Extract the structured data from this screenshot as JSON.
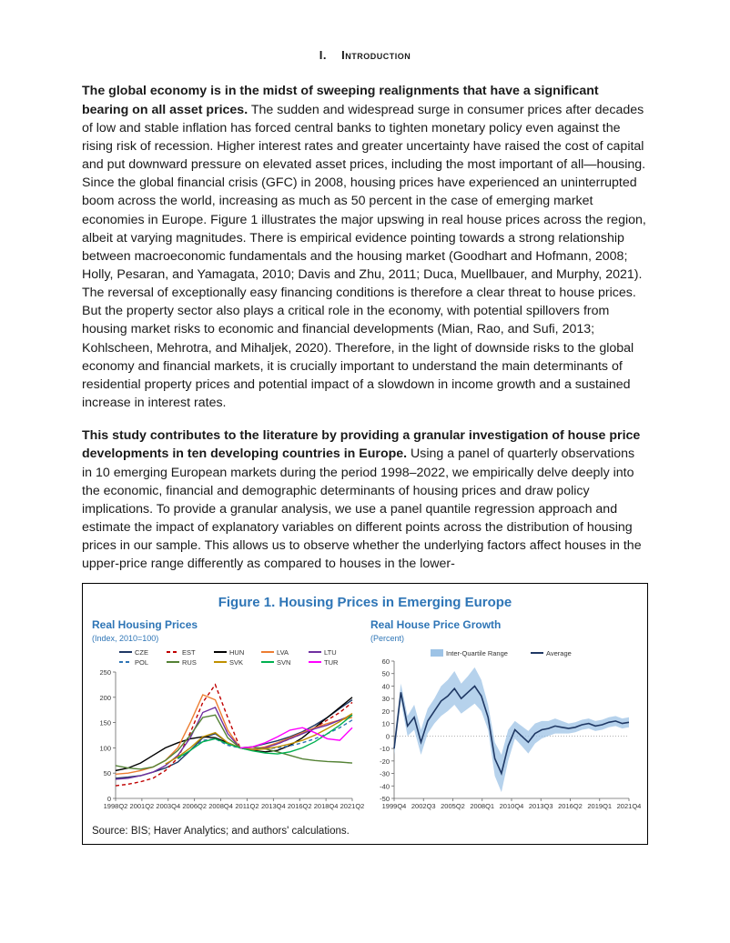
{
  "heading": {
    "number": "I.",
    "title": "Introduction"
  },
  "para1": {
    "lead": "The global economy is in the midst of sweeping realignments that have a significant bearing on all asset prices.",
    "rest": " The sudden and widespread surge in consumer prices after decades of low and stable inflation has forced central banks to tighten monetary policy even against the rising risk of recession. Higher interest rates and greater uncertainty have raised the cost of capital and put downward pressure on elevated asset prices, including the most important of all—housing. Since the global financial crisis (GFC) in 2008, housing prices have experienced an uninterrupted boom across the world, increasing as much as 50 percent in the case of emerging market economies in Europe. Figure 1 illustrates the major upswing in real house prices across the region, albeit at varying magnitudes. There is empirical evidence pointing towards a strong relationship between macroeconomic fundamentals and the housing market (Goodhart and Hofmann, 2008; Holly, Pesaran, and Yamagata, 2010; Davis and Zhu, 2011; Duca, Muellbauer, and Murphy, 2021). The reversal of exceptionally easy financing conditions is therefore a clear threat to house prices. But the property sector also plays a critical role in the economy, with potential spillovers from housing market risks to economic and financial developments (Mian, Rao, and Sufi, 2013; Kohlscheen, Mehrotra, and Mihaljek, 2020). Therefore, in the light of downside risks to the global economy and financial markets, it is crucially important to understand the main determinants of residential property prices and potential impact of a slowdown in income growth and a sustained increase in interest rates."
  },
  "para2": {
    "lead": "This study contributes to the literature by providing a granular investigation of house price developments in ten developing countries in Europe.",
    "rest": " Using a panel of quarterly observations in 10 emerging European markets during the period 1998–2022, we empirically delve deeply into the economic, financial and demographic determinants of housing prices and draw policy implications. To provide a granular analysis, we use a panel quantile regression approach and estimate the impact of explanatory variables on different points across the distribution of housing prices in our sample. This allows us to observe whether the underlying factors affect houses in the upper-price range differently as compared to houses in the lower-"
  },
  "figure": {
    "title": "Figure 1. Housing Prices in Emerging Europe",
    "source": "Source: BIS; Haver Analytics; and authors' calculations.",
    "panelA": {
      "title": "Real Housing Prices",
      "subtitle": "(Index, 2010=100)",
      "type": "line",
      "ylim": [
        0,
        250
      ],
      "ytick_step": 50,
      "xlabels": [
        "1998Q2",
        "2001Q2",
        "2003Q4",
        "2006Q2",
        "2008Q4",
        "2011Q2",
        "2013Q4",
        "2016Q2",
        "2018Q4",
        "2021Q2"
      ],
      "background_color": "#ffffff",
      "text_color": "#333333",
      "series": [
        {
          "label": "CZE",
          "color": "#1f3864",
          "dash": "",
          "values": [
            40,
            42,
            45,
            52,
            60,
            72,
            95,
            120,
            128,
            110,
            100,
            102,
            108,
            114,
            122,
            132,
            145,
            160,
            178,
            195
          ]
        },
        {
          "label": "EST",
          "color": "#c00000",
          "dash": "4,3",
          "values": [
            25,
            28,
            33,
            40,
            55,
            80,
            130,
            190,
            225,
            160,
            100,
            95,
            100,
            108,
            118,
            128,
            140,
            155,
            170,
            190
          ]
        },
        {
          "label": "HUN",
          "color": "#000000",
          "dash": "",
          "values": [
            55,
            60,
            70,
            85,
            100,
            110,
            118,
            122,
            120,
            110,
            100,
            95,
            92,
            95,
            105,
            120,
            140,
            160,
            180,
            200
          ]
        },
        {
          "label": "LVA",
          "color": "#ed7d31",
          "dash": "",
          "values": [
            48,
            50,
            55,
            62,
            75,
            100,
            150,
            205,
            195,
            135,
            100,
            98,
            102,
            110,
            120,
            130,
            140,
            148,
            155,
            160
          ]
        },
        {
          "label": "LTU",
          "color": "#7030a0",
          "dash": "",
          "values": [
            38,
            40,
            45,
            52,
            65,
            85,
            120,
            170,
            180,
            128,
            100,
            96,
            100,
            108,
            118,
            128,
            138,
            145,
            155,
            165
          ]
        },
        {
          "label": "POL",
          "color": "#2e75b6",
          "dash": "4,3",
          "values": [
            null,
            null,
            null,
            null,
            null,
            78,
            95,
            115,
            118,
            105,
            100,
            97,
            98,
            100,
            104,
            110,
            118,
            128,
            140,
            155
          ]
        },
        {
          "label": "RUS",
          "color": "#548235",
          "dash": "",
          "values": [
            65,
            60,
            58,
            62,
            75,
            95,
            125,
            160,
            165,
            120,
            100,
            102,
            98,
            92,
            85,
            78,
            75,
            73,
            72,
            70
          ]
        },
        {
          "label": "SVK",
          "color": "#bf9000",
          "dash": "",
          "values": [
            null,
            null,
            null,
            null,
            68,
            82,
            100,
            122,
            130,
            110,
            100,
            96,
            98,
            102,
            108,
            115,
            125,
            138,
            152,
            168
          ]
        },
        {
          "label": "SVN",
          "color": "#00b050",
          "dash": "",
          "values": [
            null,
            null,
            null,
            null,
            null,
            80,
            95,
            112,
            118,
            108,
            100,
            94,
            90,
            88,
            92,
            100,
            112,
            128,
            145,
            165
          ]
        },
        {
          "label": "TUR",
          "color": "#ff00ff",
          "dash": "",
          "values": [
            null,
            null,
            null,
            null,
            null,
            null,
            null,
            null,
            null,
            null,
            100,
            102,
            110,
            122,
            135,
            140,
            130,
            118,
            115,
            140
          ]
        }
      ]
    },
    "panelB": {
      "title": "Real House Price Growth",
      "subtitle": "(Percent)",
      "type": "line-band",
      "ylim": [
        -50,
        60
      ],
      "ytick_step": 10,
      "xlabels": [
        "1999Q4",
        "2002Q3",
        "2005Q2",
        "2008Q1",
        "2010Q4",
        "2013Q3",
        "2016Q2",
        "2019Q1",
        "2021Q4"
      ],
      "background_color": "#ffffff",
      "text_color": "#333333",
      "avg": {
        "label": "Average",
        "color": "#1f3864",
        "dash": "",
        "values": [
          -10,
          35,
          8,
          15,
          -5,
          12,
          20,
          28,
          32,
          38,
          30,
          35,
          40,
          32,
          15,
          -18,
          -30,
          -8,
          5,
          0,
          -5,
          2,
          5,
          6,
          8,
          7,
          6,
          7,
          9,
          10,
          8,
          9,
          11,
          12,
          10,
          11
        ]
      },
      "iqr": {
        "label": "Inter-Quartile Range",
        "color": "#9dc3e6",
        "upper": [
          -5,
          42,
          16,
          25,
          5,
          22,
          30,
          40,
          45,
          52,
          42,
          48,
          55,
          45,
          25,
          -5,
          -15,
          5,
          12,
          8,
          4,
          10,
          12,
          12,
          14,
          12,
          10,
          11,
          13,
          14,
          12,
          13,
          15,
          16,
          14,
          15
        ],
        "lower": [
          -15,
          28,
          0,
          5,
          -15,
          2,
          10,
          16,
          20,
          25,
          18,
          22,
          26,
          20,
          5,
          -32,
          -45,
          -20,
          -2,
          -8,
          -14,
          -6,
          -2,
          0,
          2,
          2,
          2,
          3,
          5,
          6,
          4,
          5,
          7,
          8,
          6,
          7
        ]
      }
    }
  }
}
